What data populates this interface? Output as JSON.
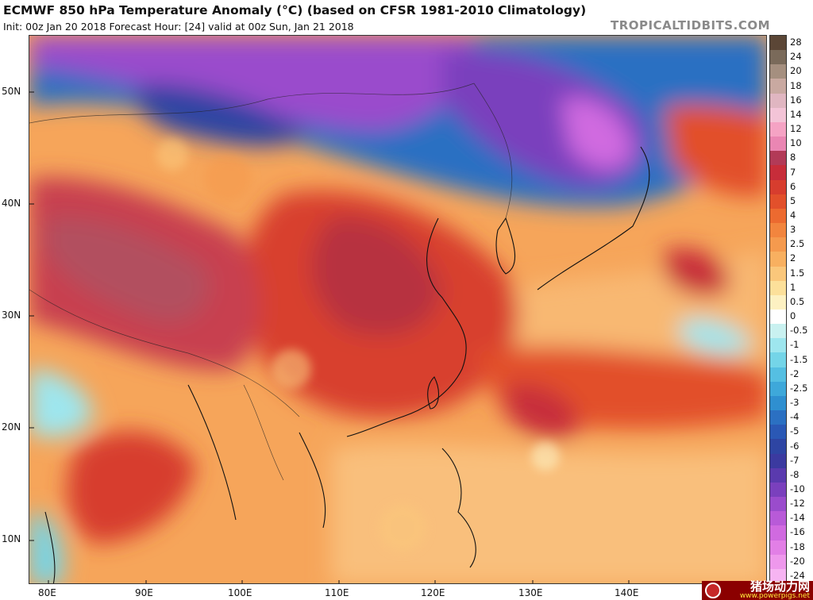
{
  "header": {
    "title": "ECMWF 850 hPa Temperature Anomaly (°C) (based on CFSR 1981-2010 Climatology)",
    "subtitle": "Init: 00z Jan 20 2018   Forecast Hour: [24]   valid at 00z Sun, Jan 21 2018",
    "credit": "TROPICALTIDBITS.COM"
  },
  "map": {
    "latitude_labels": [
      "50N",
      "40N",
      "30N",
      "20N",
      "10N"
    ],
    "longitude_labels": [
      "80E",
      "90E",
      "100E",
      "110E",
      "120E",
      "130E",
      "140E"
    ]
  },
  "colorbar": {
    "labels": [
      "28",
      "24",
      "20",
      "18",
      "16",
      "14",
      "12",
      "10",
      "8",
      "7",
      "6",
      "5",
      "4",
      "3",
      "2.5",
      "2",
      "1.5",
      "1",
      "0.5",
      "0",
      "-0.5",
      "-1",
      "-1.5",
      "-2",
      "-2.5",
      "-3",
      "-4",
      "-5",
      "-6",
      "-7",
      "-8",
      "-10",
      "-12",
      "-14",
      "-16",
      "-18",
      "-20",
      "-24"
    ],
    "colors": [
      "#5b4636",
      "#7a6a5a",
      "#a58f7f",
      "#c9a9a1",
      "#e0b6c1",
      "#f3c4d7",
      "#f5a3c4",
      "#ea86b3",
      "#b23a57",
      "#c72d3a",
      "#d73d2e",
      "#e2502b",
      "#ec6a30",
      "#f2853e",
      "#f59a4e",
      "#f8b060",
      "#fac77b",
      "#fce09a",
      "#fdf1c2",
      "#ffffff",
      "#c9f1f0",
      "#9ee6ee",
      "#74d5e8",
      "#55bfe2",
      "#3ea8da",
      "#2f8fd0",
      "#2b70c2",
      "#2a58b5",
      "#2e45a3",
      "#3b3aa0",
      "#5a3aae",
      "#7a40bd",
      "#9a4ccc",
      "#b85ad8",
      "#d06ae0",
      "#e27fe6",
      "#ee98ec",
      "#f6b4f2"
    ]
  },
  "colors": {
    "warm_strong": "#b7333f",
    "warm_mid": "#e2502b",
    "warm_light": "#f8b060",
    "neutral": "#fdf1c2",
    "cold_light": "#74d5e8",
    "cold_mid": "#2b70c2",
    "cold_strong": "#9a4ccc"
  },
  "watermark": {
    "brand": "猪场动力网",
    "url": "www.powerpigs.net"
  }
}
